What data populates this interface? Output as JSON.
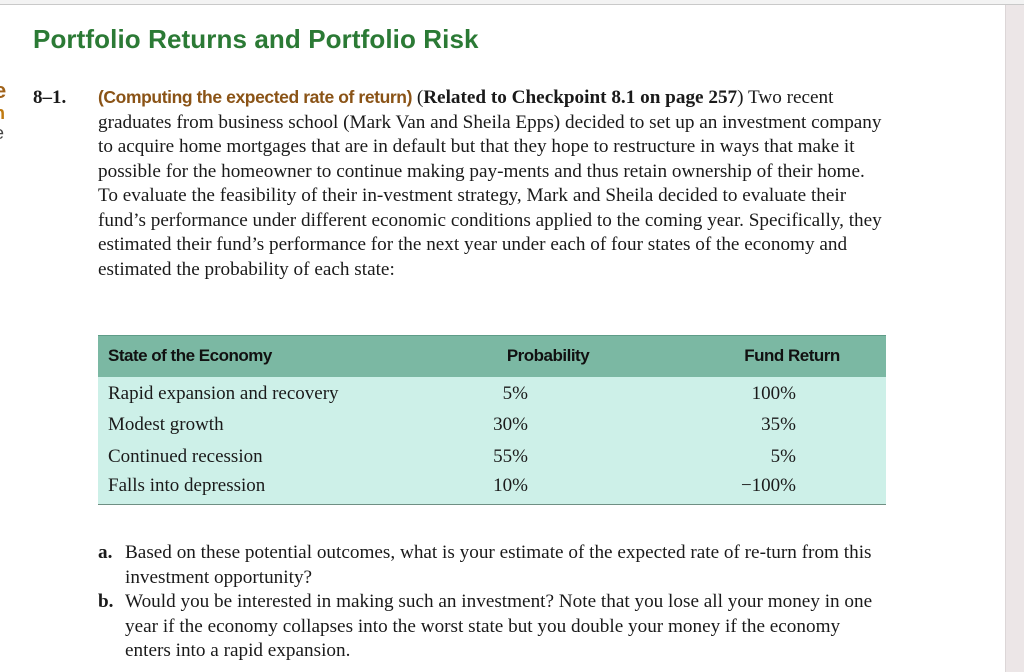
{
  "page": {
    "edge_fragments": [
      "e",
      "n",
      "e",
      "."
    ],
    "section_title": "Portfolio Returns and Portfolio Risk"
  },
  "problem": {
    "number": "8–1.",
    "topic": "(Computing the expected rate of return)",
    "related_open": "(",
    "related_bold": "Related to Checkpoint 8.1 on page 257",
    "related_close": ")",
    "body": " Two recent graduates from business school (Mark Van and Sheila Epps) decided to set up an investment company to acquire home mortgages that are in default but that they hope to restructure in ways that make it possible for the homeowner to continue making pay-ments and thus retain ownership of their home. To evaluate the feasibility of their in-vestment strategy, Mark and Sheila decided to evaluate their fund’s performance under different economic conditions applied to the coming year. Specifically, they estimated their fund’s performance for the next year under each of four states of the economy and estimated the probability of each state:"
  },
  "table": {
    "headers": [
      "State of the Economy",
      "Probability",
      "Fund Return"
    ],
    "rows": [
      {
        "state": "Rapid expansion and recovery",
        "probability": "5%",
        "fund_return": "100%"
      },
      {
        "state": "Modest growth",
        "probability": "30%",
        "fund_return": "35%"
      },
      {
        "state": "Continued recession",
        "probability": "55%",
        "fund_return": "5%"
      },
      {
        "state": "Falls into depression",
        "probability": "10%",
        "fund_return": "−100%"
      }
    ],
    "colors": {
      "header_bg": "#7bb8a3",
      "body_bg": "#cdf0e8"
    }
  },
  "questions": [
    {
      "letter": "a.",
      "text": "Based on these potential outcomes, what is your estimate of the expected rate of re-turn from this investment opportunity?"
    },
    {
      "letter": "b.",
      "text": "Would you be interested in making such an investment? Note that you lose all your money in one year if the economy collapses into the worst state but you double your money if the economy enters into a rapid expansion."
    }
  ],
  "colors": {
    "title_green": "#2b7a35",
    "topic_brown": "#8a5316"
  }
}
